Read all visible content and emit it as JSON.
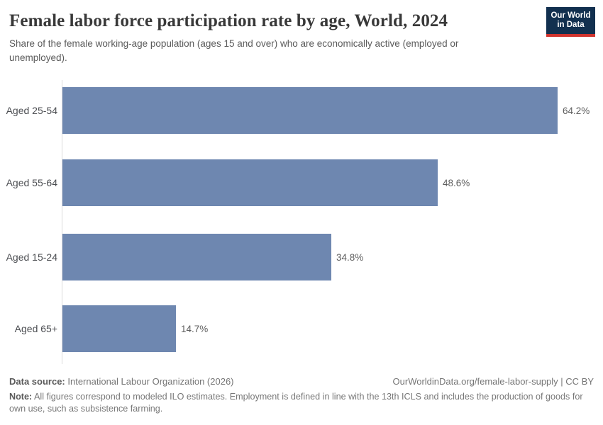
{
  "header": {
    "title": "Female labor force participation rate by age, World, 2024",
    "subtitle": "Share of the female working-age population (ages 15 and over) who are economically active (employed or unemployed).",
    "logo": {
      "line1": "Our World",
      "line2": "in Data"
    }
  },
  "chart_data": {
    "type": "bar",
    "orientation": "horizontal",
    "title": "Female labor force participation rate by age, World, 2024",
    "categories": [
      "Aged 25-54",
      "Aged 55-64",
      "Aged 15-24",
      "Aged 65+"
    ],
    "values": [
      64.2,
      48.6,
      34.8,
      14.7
    ],
    "value_labels": [
      "64.2%",
      "48.6%",
      "34.8%",
      "14.7%"
    ],
    "unit": "%",
    "xlabel": "",
    "ylabel": "",
    "xlim": [
      0,
      70
    ],
    "grid": false,
    "legend": "none",
    "bar_color": "#6e87b0"
  },
  "footer": {
    "data_source_label": "Data source:",
    "data_source_text": " International Labour Organization (2026)",
    "link_text": "OurWorldinData.org/female-labor-supply | CC BY",
    "note_label": "Note:",
    "note_text": " All figures correspond to modeled ILO estimates. Employment is defined in line with the 13th ICLS and includes the production of goods for own use, such as subsistence farming."
  },
  "colors": {
    "bar": "#6e87b0",
    "logo_bg": "#12304f",
    "logo_stripe": "#d0342e",
    "axis_line": "#dcdcdc",
    "title_text": "#383838",
    "body_text": "#5a5a5a",
    "footer_text": "#757575"
  }
}
